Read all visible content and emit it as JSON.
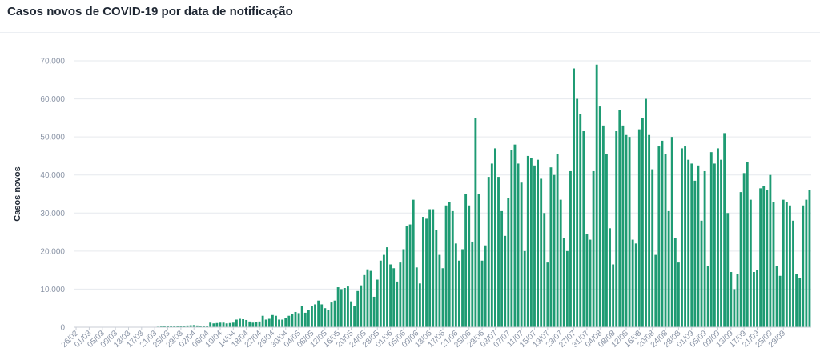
{
  "header": {
    "title": "Casos novos de COVID-19 por data de notificação"
  },
  "chart_data": {
    "type": "bar",
    "title": "Casos novos de COVID-19 por data de notificação",
    "xlabel": "",
    "ylabel": "Casos novos",
    "ylim": [
      0,
      70000
    ],
    "yticks": [
      0,
      10000,
      20000,
      30000,
      40000,
      50000,
      60000,
      70000
    ],
    "ytick_labels": [
      "0",
      "10.000",
      "20.000",
      "30.000",
      "40.000",
      "50.000",
      "60.000",
      "70.000"
    ],
    "start_date": "2020-02-26",
    "xtick_labels": [
      "26/02",
      "01/03",
      "05/03",
      "09/03",
      "13/03",
      "17/03",
      "21/03",
      "25/03",
      "29/03",
      "02/04",
      "06/04",
      "10/04",
      "14/04",
      "18/04",
      "22/04",
      "26/04",
      "30/04",
      "04/05",
      "08/05",
      "12/05",
      "16/05",
      "20/05",
      "24/05",
      "28/05",
      "01/06",
      "05/06",
      "09/06",
      "13/06",
      "17/06",
      "21/06",
      "25/06",
      "29/06",
      "03/07",
      "07/07",
      "11/07",
      "15/07",
      "19/07",
      "23/07",
      "27/07",
      "31/07",
      "04/08",
      "08/08",
      "12/08",
      "16/08",
      "20/08",
      "24/08",
      "28/08",
      "01/09",
      "05/09",
      "09/09",
      "13/09",
      "17/09",
      "21/09",
      "25/09",
      "29/09"
    ],
    "bar_color": "#1e9b73",
    "grid": true,
    "values": [
      0,
      0,
      0,
      0,
      0,
      0,
      0,
      0,
      0,
      0,
      0,
      0,
      0,
      0,
      0,
      0,
      0,
      0,
      0,
      0,
      0,
      50,
      50,
      100,
      100,
      150,
      200,
      250,
      300,
      350,
      400,
      400,
      300,
      350,
      450,
      500,
      550,
      450,
      400,
      350,
      400,
      1200,
      1000,
      1100,
      1200,
      1200,
      1000,
      1100,
      1200,
      2000,
      2200,
      2100,
      1900,
      1500,
      1200,
      1300,
      1500,
      3000,
      2000,
      2200,
      3200,
      3000,
      2000,
      2000,
      2500,
      3000,
      3500,
      4000,
      3700,
      5500,
      3800,
      4500,
      5500,
      6000,
      7000,
      6000,
      5000,
      4500,
      6500,
      7000,
      10500,
      10000,
      10300,
      10700,
      6800,
      5500,
      9500,
      11000,
      13700,
      15200,
      14800,
      8000,
      12500,
      17500,
      19000,
      21000,
      16500,
      15500,
      12000,
      17000,
      20500,
      26500,
      27000,
      33500,
      15700,
      11500,
      29000,
      28500,
      31000,
      31000,
      25500,
      19000,
      15500,
      32000,
      33000,
      30500,
      22000,
      17500,
      20500,
      35000,
      32000,
      22500,
      55000,
      35000,
      17500,
      21500,
      39500,
      43000,
      47000,
      39500,
      30500,
      24000,
      34000,
      46500,
      48000,
      43000,
      38000,
      20000,
      45000,
      44500,
      42500,
      44000,
      39000,
      30000,
      17000,
      42000,
      40000,
      45500,
      33500,
      23500,
      20000,
      41000,
      68000,
      60000,
      56000,
      51500,
      24500,
      23000,
      41000,
      69000,
      58000,
      53000,
      45500,
      26000,
      16500,
      51500,
      57000,
      53000,
      50500,
      50000,
      23000,
      22000,
      52000,
      55000,
      60000,
      50500,
      41500,
      19000,
      47500,
      49000,
      45500,
      30500,
      50000,
      23500,
      17000,
      47000,
      47500,
      44000,
      43000,
      38500,
      42500,
      28000,
      41000,
      16000,
      46000,
      43000,
      47000,
      44000,
      51000,
      30000,
      14500,
      10000,
      14000,
      35500,
      40500,
      43500,
      33500,
      14500,
      15000,
      36500,
      37000,
      36000,
      40000,
      33000,
      16000,
      13500,
      33500,
      33000,
      32000,
      28000,
      14000,
      13000,
      32000,
      33500,
      36000
    ]
  }
}
